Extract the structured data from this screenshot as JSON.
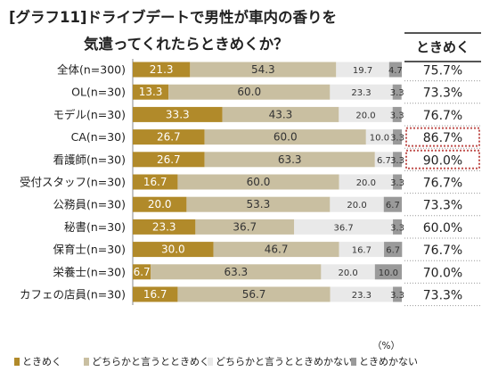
{
  "title": {
    "line1": "[グラフ11]ドライブデートで男性が車内の香りを",
    "line2": "気遣ってくれたらときめくか？"
  },
  "column_header": "ときめく",
  "unit_label": "（%）",
  "chart_data": {
    "type": "bar",
    "orientation": "horizontal",
    "stacked": true,
    "xlim": [
      0,
      100
    ],
    "categories": [
      "全体(n=300)",
      "OL(n=30)",
      "モデル(n=30)",
      "CA(n=30)",
      "看護師(n=30)",
      "受付スタッフ(n=30)",
      "公務員(n=30)",
      "秘書(n=30)",
      "保育士(n=30)",
      "栄養士(n=30)",
      "カフェの店員(n=30)"
    ],
    "series": [
      {
        "name": "ときめく",
        "color": "#b18a2a",
        "values": [
          21.3,
          13.3,
          33.3,
          26.7,
          26.7,
          16.7,
          20.0,
          23.3,
          30.0,
          6.7,
          16.7
        ],
        "labels": [
          "21.3",
          "13.3",
          "33.3",
          "26.7",
          "26.7",
          "16.7",
          "20.0",
          "23.3",
          "30.0",
          "6.7",
          "16.7"
        ]
      },
      {
        "name": "どちらかと言うとときめく",
        "color": "#c9bfa1",
        "values": [
          54.3,
          60.0,
          43.3,
          60.0,
          63.3,
          60.0,
          53.3,
          36.7,
          46.7,
          63.3,
          56.7
        ],
        "labels": [
          "54.3",
          "60.0",
          "43.3",
          "60.0",
          "63.3",
          "60.0",
          "53.3",
          "36.7",
          "46.7",
          "63.3",
          "56.7"
        ]
      },
      {
        "name": "どちらかと言うとときめかない",
        "color": "#e9e9e9",
        "values": [
          19.7,
          23.3,
          20.0,
          10.0,
          6.7,
          20.0,
          20.0,
          36.7,
          16.7,
          20.0,
          23.3
        ],
        "labels": [
          "19.7",
          "23.3",
          "20.0",
          "10.0",
          "6.7",
          "20.0",
          "20.0",
          "36.7",
          "16.7",
          "20.0",
          "23.3"
        ]
      },
      {
        "name": "ときめかない",
        "color": "#9a9a9a",
        "values": [
          4.7,
          3.3,
          3.3,
          3.3,
          3.3,
          3.3,
          6.7,
          3.3,
          6.7,
          10.0,
          3.3
        ],
        "labels": [
          "4.7",
          "3.3",
          "3.3",
          "3.3",
          "3.3",
          "3.3",
          "6.7",
          "3.3",
          "6.7",
          "10.0",
          "3.3"
        ]
      }
    ],
    "totals": {
      "name": "ときめく",
      "values": [
        "75.7%",
        "73.3%",
        "76.7%",
        "86.7%",
        "90.0%",
        "76.7%",
        "73.3%",
        "60.0%",
        "76.7%",
        "70.0%",
        "73.3%"
      ],
      "highlighted": [
        false,
        false,
        false,
        true,
        true,
        false,
        false,
        false,
        false,
        false,
        false
      ],
      "highlight_color": "#c0504d"
    },
    "legend_position": "bottom",
    "grid": false
  }
}
